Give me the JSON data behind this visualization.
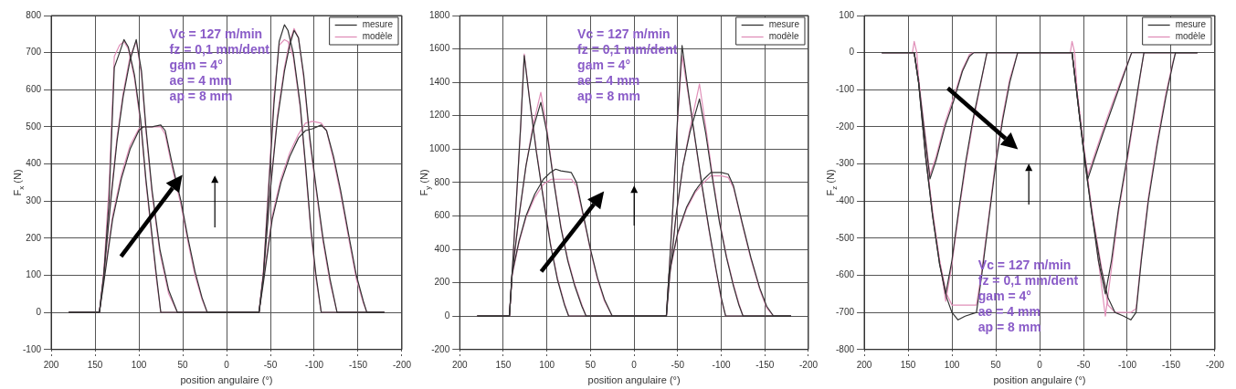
{
  "chart_data": [
    {
      "type": "line",
      "xlabel": "position angulaire (°)",
      "ylabel": "F$_{x}$ (N)",
      "xlim": [
        200,
        -200
      ],
      "xticks": [
        200,
        150,
        100,
        50,
        0,
        -50,
        -100,
        -150,
        -200
      ],
      "ylim": [
        -100,
        800
      ],
      "yticks": [
        -100,
        0,
        100,
        200,
        300,
        400,
        500,
        600,
        700,
        800
      ],
      "grid": true,
      "legend": "top right",
      "annotations": [
        "Vc = 127 m/min",
        "fz = 0,1 mm/dent",
        "gam = 4°",
        "ae = 4 mm",
        "ap = 8 mm"
      ],
      "series": [
        {
          "name": "mesure",
          "color": "#333333",
          "x": [
            180,
            145,
            140,
            134,
            128,
            122,
            117,
            112,
            105,
            98,
            92,
            86,
            80,
            75,
            20,
            -37,
            -42,
            -48,
            -54,
            -60,
            -66,
            -70,
            -76,
            -84,
            -90,
            -96,
            -102,
            -108,
            -180
          ],
          "values": [
            0,
            0,
            100,
            300,
            660,
            700,
            735,
            715,
            640,
            520,
            360,
            230,
            100,
            0,
            0,
            0,
            100,
            330,
            560,
            730,
            775,
            760,
            700,
            560,
            400,
            230,
            100,
            0,
            0
          ]
        },
        {
          "color": "#333333",
          "x": [
            180,
            145,
            140,
            132,
            125,
            118,
            110,
            103,
            97,
            92,
            85,
            76,
            66,
            56,
            -37,
            -42,
            -50,
            -58,
            -66,
            -72,
            -77,
            -82,
            -88,
            -95,
            -102,
            -110,
            -118,
            -126,
            -180
          ],
          "values": [
            0,
            0,
            100,
            300,
            460,
            580,
            680,
            735,
            650,
            500,
            330,
            170,
            60,
            0,
            0,
            100,
            330,
            520,
            650,
            720,
            760,
            740,
            640,
            470,
            340,
            200,
            90,
            0,
            0
          ]
        },
        {
          "color": "#333333",
          "x": [
            180,
            145,
            140,
            130,
            120,
            110,
            100,
            95,
            85,
            75,
            70,
            62,
            52,
            44,
            36,
            28,
            22,
            -37,
            -42,
            -52,
            -62,
            -72,
            -82,
            -90,
            -98,
            -108,
            -114,
            -122,
            -130,
            -140,
            -148,
            -156,
            -160,
            -180
          ],
          "values": [
            0,
            0,
            80,
            250,
            360,
            440,
            490,
            500,
            500,
            505,
            490,
            400,
            300,
            200,
            110,
            40,
            0,
            0,
            80,
            250,
            350,
            420,
            470,
            490,
            495,
            505,
            490,
            420,
            330,
            200,
            100,
            30,
            0,
            0
          ]
        },
        {
          "name": "modèle",
          "color": "#e08fb8",
          "x": [
            180,
            145,
            140,
            134,
            128,
            122,
            117,
            112,
            105,
            98,
            92,
            86,
            80,
            75,
            20,
            -37,
            -42,
            -48,
            -54,
            -60,
            -66,
            -70,
            -76,
            -84,
            -90,
            -96,
            -102,
            -108,
            -180
          ],
          "values": [
            0,
            0,
            110,
            340,
            690,
            720,
            730,
            710,
            630,
            510,
            350,
            220,
            90,
            0,
            0,
            0,
            110,
            350,
            580,
            720,
            735,
            730,
            690,
            550,
            390,
            220,
            90,
            0,
            0
          ]
        },
        {
          "color": "#e08fb8",
          "x": [
            180,
            145,
            140,
            132,
            125,
            118,
            110,
            103,
            97,
            92,
            85,
            76,
            66,
            56,
            -37,
            -42,
            -50,
            -58,
            -66,
            -72,
            -77,
            -82,
            -88,
            -95,
            -102,
            -110,
            -118,
            -126,
            -180
          ],
          "values": [
            0,
            0,
            110,
            310,
            470,
            590,
            690,
            730,
            640,
            490,
            320,
            160,
            50,
            0,
            0,
            110,
            340,
            530,
            660,
            730,
            765,
            740,
            630,
            460,
            330,
            190,
            80,
            0,
            0
          ]
        },
        {
          "color": "#e08fb8",
          "x": [
            180,
            145,
            140,
            130,
            120,
            110,
            100,
            95,
            85,
            75,
            70,
            62,
            52,
            44,
            36,
            28,
            22,
            -37,
            -42,
            -52,
            -62,
            -72,
            -82,
            -90,
            -98,
            -108,
            -114,
            -122,
            -130,
            -140,
            -148,
            -156,
            -160,
            -180
          ],
          "values": [
            0,
            0,
            90,
            260,
            370,
            450,
            495,
            500,
            500,
            500,
            480,
            390,
            290,
            190,
            100,
            35,
            0,
            0,
            90,
            260,
            360,
            430,
            480,
            510,
            515,
            510,
            490,
            410,
            320,
            190,
            90,
            25,
            0,
            0
          ]
        }
      ]
    },
    {
      "type": "line",
      "xlabel": "position angulaire (°)",
      "ylabel": "F$_{y}$ (N)",
      "xlim": [
        200,
        -200
      ],
      "xticks": [
        200,
        150,
        100,
        50,
        0,
        -50,
        -100,
        -150,
        -200
      ],
      "ylim": [
        -200,
        1800
      ],
      "yticks": [
        -200,
        0,
        200,
        400,
        600,
        800,
        1000,
        1200,
        1400,
        1600,
        1800
      ],
      "grid": true,
      "legend": "top right",
      "annotations": [
        "Vc = 127 m/min",
        "fz = 0,1 mm/dent",
        "gam = 4°",
        "ae = 4 mm",
        "ap = 8 mm"
      ],
      "series": [
        {
          "name": "mesure",
          "color": "#333333",
          "x": [
            180,
            143,
            140,
            135,
            130,
            126,
            120,
            112,
            104,
            96,
            88,
            80,
            75,
            -37,
            -40,
            -45,
            -50,
            -55,
            -62,
            -70,
            -78,
            -86,
            -94,
            -100,
            -105,
            -180
          ],
          "values": [
            0,
            0,
            250,
            700,
            1150,
            1560,
            1300,
            980,
            700,
            430,
            220,
            70,
            0,
            0,
            250,
            700,
            1200,
            1620,
            1350,
            1060,
            780,
            520,
            280,
            110,
            0,
            0
          ]
        },
        {
          "color": "#333333",
          "x": [
            180,
            143,
            140,
            132,
            124,
            116,
            107,
            100,
            92,
            84,
            76,
            68,
            60,
            55,
            -37,
            -41,
            -48,
            -56,
            -64,
            -75,
            -82,
            -90,
            -98,
            -106,
            -114,
            -120,
            -125,
            -180
          ],
          "values": [
            0,
            0,
            250,
            600,
            900,
            1120,
            1280,
            1100,
            800,
            530,
            330,
            180,
            60,
            0,
            0,
            250,
            600,
            900,
            1100,
            1300,
            1100,
            820,
            560,
            350,
            180,
            70,
            0,
            0
          ]
        },
        {
          "color": "#333333",
          "x": [
            180,
            143,
            140,
            132,
            124,
            114,
            104,
            96,
            90,
            84,
            72,
            66,
            58,
            50,
            42,
            34,
            25,
            -37,
            -40,
            -50,
            -60,
            -70,
            -80,
            -88,
            -100,
            -108,
            -114,
            -124,
            -134,
            -144,
            -152,
            -160,
            -180
          ],
          "values": [
            0,
            0,
            250,
            450,
            600,
            730,
            820,
            860,
            880,
            870,
            860,
            800,
            600,
            400,
            230,
            100,
            0,
            0,
            250,
            500,
            650,
            750,
            820,
            860,
            860,
            850,
            780,
            560,
            350,
            170,
            60,
            0,
            0
          ]
        },
        {
          "name": "modèle",
          "color": "#e08fb8",
          "x": [
            180,
            143,
            140,
            135,
            130,
            126,
            120,
            112,
            104,
            96,
            88,
            80,
            75,
            -37,
            -40,
            -45,
            -50,
            -55,
            -62,
            -70,
            -78,
            -86,
            -94,
            -100,
            -105,
            -180
          ],
          "values": [
            0,
            0,
            240,
            690,
            1140,
            1570,
            1310,
            990,
            710,
            440,
            230,
            80,
            0,
            0,
            240,
            690,
            1170,
            1560,
            1330,
            1050,
            770,
            510,
            270,
            100,
            0,
            0
          ]
        },
        {
          "color": "#e08fb8",
          "x": [
            180,
            143,
            140,
            132,
            124,
            116,
            107,
            100,
            92,
            84,
            76,
            68,
            60,
            55,
            -37,
            -41,
            -48,
            -56,
            -64,
            -75,
            -82,
            -90,
            -98,
            -106,
            -114,
            -120,
            -125,
            -180
          ],
          "values": [
            0,
            0,
            240,
            590,
            900,
            1140,
            1340,
            1120,
            810,
            540,
            340,
            190,
            70,
            0,
            0,
            240,
            590,
            900,
            1120,
            1390,
            1140,
            840,
            570,
            360,
            190,
            80,
            0,
            0
          ]
        },
        {
          "color": "#e08fb8",
          "x": [
            180,
            143,
            140,
            132,
            124,
            114,
            104,
            95,
            84,
            72,
            66,
            58,
            50,
            42,
            34,
            25,
            -37,
            -40,
            -50,
            -60,
            -70,
            -80,
            -88,
            -100,
            -108,
            -114,
            -124,
            -134,
            -144,
            -152,
            -160,
            -180
          ],
          "values": [
            0,
            0,
            240,
            440,
            590,
            710,
            790,
            820,
            820,
            820,
            780,
            590,
            390,
            220,
            90,
            0,
            0,
            240,
            490,
            640,
            740,
            800,
            840,
            840,
            830,
            770,
            550,
            340,
            160,
            50,
            0,
            0
          ]
        }
      ]
    },
    {
      "type": "line",
      "xlabel": "position angulaire (°)",
      "ylabel": "F$_{z}$ (N)",
      "xlim": [
        200,
        -200
      ],
      "xticks": [
        200,
        150,
        100,
        50,
        0,
        -50,
        -100,
        -150,
        -200
      ],
      "ylim": [
        -800,
        100
      ],
      "yticks": [
        -800,
        -700,
        -600,
        -500,
        -400,
        -300,
        -200,
        -100,
        0,
        100
      ],
      "grid": true,
      "legend": "top right",
      "annotations": [
        "Vc = 127 m/min",
        "fz = 0,1 mm/dent",
        "gam = 4°",
        "ae = 4 mm",
        "ap = 8 mm"
      ],
      "series": [
        {
          "name": "mesure",
          "color": "#333333",
          "x": [
            180,
            143,
            138,
            132,
            125,
            118,
            108,
            98,
            88,
            80,
            75,
            -37,
            -43,
            -49,
            -55,
            -62,
            -72,
            -84,
            -96,
            -105,
            -180
          ],
          "values": [
            0,
            0,
            -80,
            -200,
            -340,
            -290,
            -200,
            -130,
            -50,
            -10,
            0,
            0,
            -120,
            -240,
            -340,
            -290,
            -220,
            -140,
            -60,
            0,
            0
          ]
        },
        {
          "color": "#333333",
          "x": [
            180,
            143,
            138,
            130,
            122,
            114,
            107,
            100,
            92,
            84,
            76,
            68,
            60,
            -37,
            -43,
            -52,
            -60,
            -67,
            -75,
            -82,
            -90,
            -100,
            -108,
            -114,
            -119,
            -180
          ],
          "values": [
            0,
            0,
            -80,
            -280,
            -440,
            -570,
            -650,
            -560,
            -420,
            -290,
            -180,
            -90,
            0,
            0,
            -120,
            -300,
            -440,
            -560,
            -650,
            -560,
            -420,
            -280,
            -160,
            -70,
            0,
            0
          ]
        },
        {
          "color": "#333333",
          "x": [
            180,
            143,
            138,
            130,
            122,
            114,
            106,
            100,
            93,
            85,
            72,
            66,
            58,
            50,
            42,
            34,
            25,
            -37,
            -43,
            -52,
            -60,
            -70,
            -78,
            -86,
            -96,
            -104,
            -110,
            -116,
            -124,
            -134,
            -144,
            -152,
            -155,
            -180
          ],
          "values": [
            0,
            0,
            -80,
            -280,
            -440,
            -570,
            -660,
            -700,
            -720,
            -710,
            -700,
            -600,
            -450,
            -300,
            -180,
            -80,
            0,
            0,
            -120,
            -300,
            -440,
            -580,
            -660,
            -700,
            -710,
            -720,
            -700,
            -560,
            -400,
            -250,
            -120,
            -30,
            0,
            0
          ]
        },
        {
          "name": "modèle",
          "color": "#e08fb8",
          "x": [
            180,
            145,
            143,
            140,
            138,
            132,
            125,
            118,
            108,
            98,
            88,
            80,
            75,
            -35,
            -37,
            -40,
            -43,
            -49,
            -55,
            -62,
            -72,
            -84,
            -96,
            -105,
            -180
          ],
          "values": [
            0,
            0,
            30,
            0,
            -70,
            -190,
            -330,
            -280,
            -190,
            -120,
            -45,
            -5,
            0,
            0,
            30,
            0,
            -110,
            -230,
            -330,
            -280,
            -210,
            -130,
            -55,
            0,
            0
          ]
        },
        {
          "color": "#e08fb8",
          "x": [
            180,
            143,
            138,
            130,
            122,
            114,
            107,
            100,
            92,
            84,
            76,
            68,
            60,
            -37,
            -43,
            -52,
            -60,
            -67,
            -75,
            -82,
            -90,
            -100,
            -108,
            -114,
            -119,
            -180
          ],
          "values": [
            0,
            0,
            -70,
            -270,
            -430,
            -560,
            -670,
            -570,
            -430,
            -300,
            -190,
            -95,
            0,
            0,
            -110,
            -290,
            -430,
            -560,
            -710,
            -580,
            -430,
            -290,
            -170,
            -75,
            0,
            0
          ]
        },
        {
          "color": "#e08fb8",
          "x": [
            180,
            143,
            138,
            130,
            122,
            114,
            106,
            100,
            95,
            85,
            72,
            66,
            58,
            50,
            42,
            34,
            25,
            -37,
            -43,
            -52,
            -60,
            -70,
            -78,
            -86,
            -96,
            -104,
            -110,
            -116,
            -124,
            -134,
            -144,
            -152,
            -155,
            -180
          ],
          "values": [
            0,
            0,
            -70,
            -270,
            -430,
            -560,
            -650,
            -680,
            -680,
            -680,
            -680,
            -590,
            -440,
            -290,
            -170,
            -70,
            0,
            0,
            -110,
            -290,
            -430,
            -570,
            -680,
            -700,
            -700,
            -700,
            -690,
            -550,
            -390,
            -240,
            -110,
            -25,
            0,
            0
          ]
        }
      ]
    }
  ]
}
